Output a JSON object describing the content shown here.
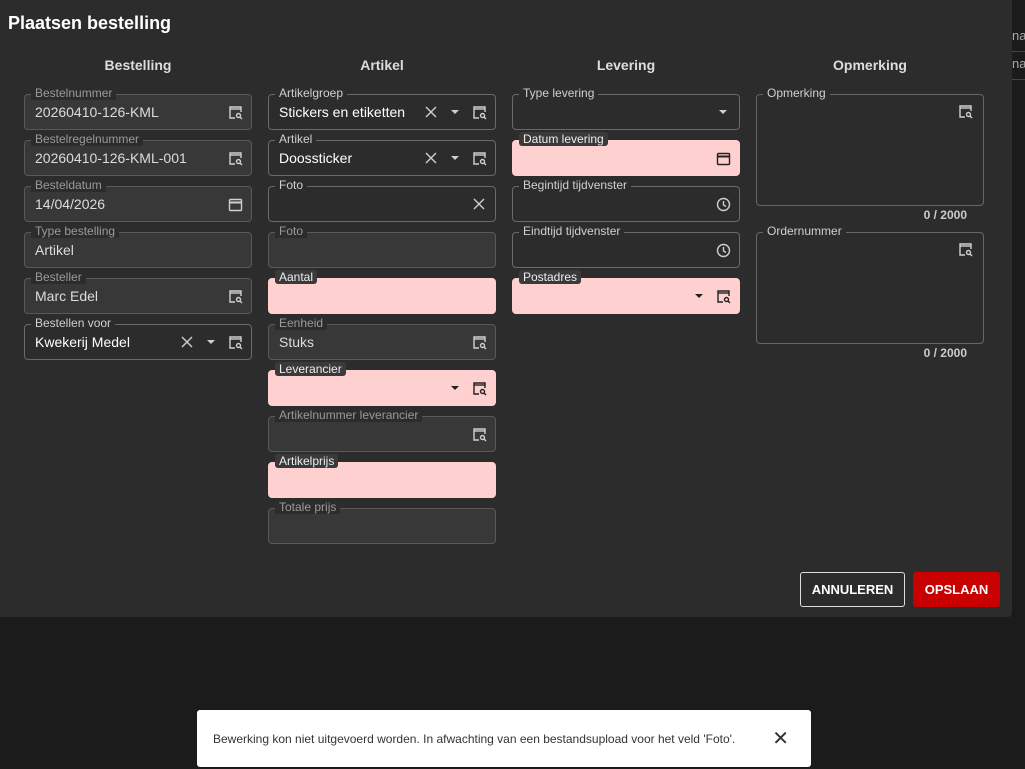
{
  "dialog": {
    "title": "Plaatsen bestelling",
    "columns": [
      {
        "heading": "Bestelling",
        "fields": [
          {
            "label": "Bestelnummer",
            "value": "20260410-126-KML",
            "state": "readonly",
            "icons": [
              "lookup"
            ]
          },
          {
            "label": "Bestelregelnummer",
            "value": "20260410-126-KML-001",
            "state": "readonly",
            "icons": [
              "lookup"
            ]
          },
          {
            "label": "Besteldatum",
            "value": "14/04/2026",
            "state": "readonly",
            "icons": [
              "calendar"
            ]
          },
          {
            "label": "Type bestelling",
            "value": "Artikel",
            "state": "readonly",
            "icons": []
          },
          {
            "label": "Besteller",
            "value": "Marc Edel",
            "state": "readonly",
            "icons": [
              "lookup"
            ]
          },
          {
            "label": "Bestellen voor",
            "value": "Kwekerij Medel",
            "state": "normal",
            "icons": [
              "clear",
              "dropdown",
              "lookup"
            ]
          }
        ]
      },
      {
        "heading": "Artikel",
        "fields": [
          {
            "label": "Artikelgroep",
            "value": "Stickers en etiketten",
            "state": "normal",
            "icons": [
              "clear",
              "dropdown",
              "lookup"
            ]
          },
          {
            "label": "Artikel",
            "value": "Doossticker",
            "state": "normal",
            "icons": [
              "clear",
              "dropdown",
              "lookup"
            ]
          },
          {
            "label": "Foto",
            "value": "",
            "state": "normal",
            "icons": [
              "clear"
            ]
          },
          {
            "label": "Foto",
            "value": "",
            "state": "disabled",
            "icons": []
          },
          {
            "label": "Aantal",
            "value": "",
            "state": "error",
            "icons": []
          },
          {
            "label": "Eenheid",
            "value": "Stuks",
            "state": "readonly",
            "icons": [
              "lookup"
            ]
          },
          {
            "label": "Leverancier",
            "value": "",
            "state": "error",
            "icons": [
              "dropdown",
              "lookup"
            ]
          },
          {
            "label": "Artikelnummer leverancier",
            "value": "",
            "state": "disabled",
            "icons": [
              "lookup"
            ]
          },
          {
            "label": "Artikelprijs",
            "value": "",
            "state": "error",
            "icons": []
          },
          {
            "label": "Totale prijs",
            "value": "",
            "state": "disabled",
            "icons": []
          }
        ]
      },
      {
        "heading": "Levering",
        "fields": [
          {
            "label": "Type levering",
            "value": "",
            "state": "normal",
            "icons": [
              "dropdown"
            ]
          },
          {
            "label": "Datum levering",
            "value": "",
            "state": "error",
            "icons": [
              "calendar"
            ]
          },
          {
            "label": "Begintijd tijdvenster",
            "value": "",
            "state": "normal",
            "icons": [
              "clock"
            ]
          },
          {
            "label": "Eindtijd tijdvenster",
            "value": "",
            "state": "normal",
            "icons": [
              "clock"
            ]
          },
          {
            "label": "Postadres",
            "value": "",
            "state": "error",
            "icons": [
              "dropdown",
              "lookup"
            ]
          }
        ]
      },
      {
        "heading": "Opmerking",
        "textareas": [
          {
            "label": "Opmerking",
            "counter": "0 / 2000"
          },
          {
            "label": "Ordernummer",
            "counter": "0 / 2000"
          }
        ]
      }
    ],
    "cancel_label": "ANNULEREN",
    "save_label": "OPSLAAN",
    "accent": "#c80000",
    "error_bg": "#ffd0d0"
  },
  "toast": {
    "message": "Bewerking kon niet uitgevoerd worden. In afwachting van een bestandsupload voor het veld 'Foto'."
  },
  "background": {
    "row_text": "na"
  }
}
